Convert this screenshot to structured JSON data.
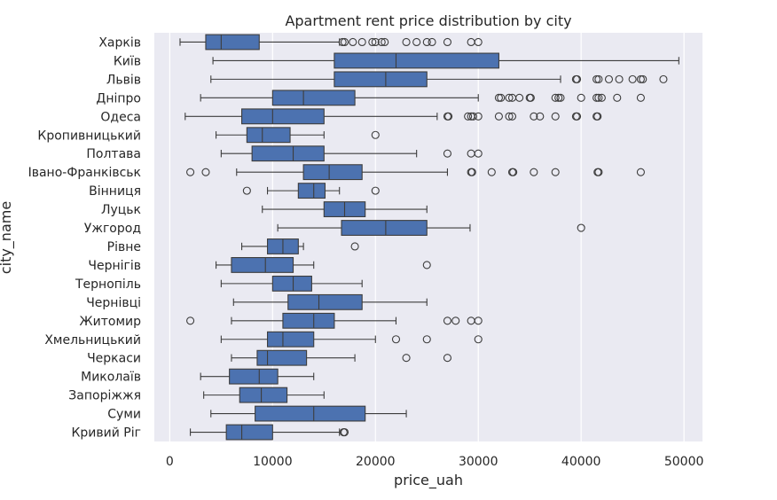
{
  "chart_data": {
    "type": "boxplot",
    "orientation": "horizontal",
    "title": "Apartment rent price distribution by city",
    "xlabel": "price_uah",
    "ylabel": "city_name",
    "xlim": [
      -1500,
      51800
    ],
    "x_ticks": [
      0,
      10000,
      20000,
      30000,
      40000,
      50000
    ],
    "grid": true,
    "background": "#eaeaf2",
    "box_color": "#4c72b0",
    "line_color": "#3d3d3d",
    "categories": [
      "Харків",
      "Київ",
      "Львів",
      "Дніпро",
      "Одеса",
      "Кропивницький",
      "Полтава",
      "Івано-Франківськ",
      "Вінниця",
      "Луцьк",
      "Ужгород",
      "Рівне",
      "Чернігів",
      "Тернопіль",
      "Чернівці",
      "Житомир",
      "Хмельницький",
      "Черкаси",
      "Миколаїв",
      "Запоріжжя",
      "Суми",
      "Кривий Ріг"
    ],
    "boxes": [
      {
        "whisker_low": 1000,
        "q1": 3500,
        "median": 5000,
        "q3": 8700,
        "whisker_high": 16500,
        "outliers": [
          16800,
          17000,
          17800,
          18700,
          19700,
          20000,
          20600,
          20900,
          23000,
          24000,
          25000,
          25500,
          27000,
          29300,
          30000
        ]
      },
      {
        "whisker_low": 4200,
        "q1": 16000,
        "median": 22000,
        "q3": 32000,
        "whisker_high": 49500,
        "outliers": []
      },
      {
        "whisker_low": 4000,
        "q1": 16000,
        "median": 21000,
        "q3": 25000,
        "whisker_high": 38000,
        "outliers": [
          39500,
          39600,
          41500,
          41700,
          42700,
          43700,
          45000,
          45800,
          46000,
          48000
        ]
      },
      {
        "whisker_low": 3000,
        "q1": 10000,
        "median": 13000,
        "q3": 18000,
        "whisker_high": 30000,
        "outliers": [
          32000,
          32200,
          33000,
          33300,
          34000,
          35000,
          35100,
          37500,
          37800,
          38000,
          40000,
          41500,
          41700,
          42000,
          43500,
          45800
        ]
      },
      {
        "whisker_low": 1500,
        "q1": 7000,
        "median": 10000,
        "q3": 15000,
        "whisker_high": 26000,
        "outliers": [
          27000,
          27100,
          29000,
          29300,
          29500,
          30000,
          32000,
          33000,
          33300,
          35400,
          36000,
          37500,
          39500,
          39600,
          41500,
          41600
        ]
      },
      {
        "whisker_low": 4500,
        "q1": 7500,
        "median": 9000,
        "q3": 11700,
        "whisker_high": 15000,
        "outliers": [
          20000
        ]
      },
      {
        "whisker_low": 5000,
        "q1": 8000,
        "median": 12000,
        "q3": 15000,
        "whisker_high": 24000,
        "outliers": [
          27000,
          29300,
          30000
        ]
      },
      {
        "whisker_low": 6500,
        "q1": 13000,
        "median": 15500,
        "q3": 18700,
        "whisker_high": 27000,
        "outliers": [
          2000,
          3500,
          29300,
          29400,
          31300,
          33300,
          33400,
          35400,
          37500,
          41600,
          41700,
          45800
        ]
      },
      {
        "whisker_low": 9500,
        "q1": 12500,
        "median": 14000,
        "q3": 15100,
        "whisker_high": 16500,
        "outliers": [
          7500,
          20000
        ]
      },
      {
        "whisker_low": 9000,
        "q1": 15000,
        "median": 17000,
        "q3": 19000,
        "whisker_high": 25000,
        "outliers": []
      },
      {
        "whisker_low": 10500,
        "q1": 16700,
        "median": 21000,
        "q3": 25000,
        "whisker_high": 29200,
        "outliers": [
          40000
        ]
      },
      {
        "whisker_low": 7000,
        "q1": 9500,
        "median": 11000,
        "q3": 12500,
        "whisker_high": 13000,
        "outliers": [
          18000
        ]
      },
      {
        "whisker_low": 4500,
        "q1": 6000,
        "median": 9300,
        "q3": 12000,
        "whisker_high": 14000,
        "outliers": [
          25000
        ]
      },
      {
        "whisker_low": 5000,
        "q1": 10000,
        "median": 12000,
        "q3": 13800,
        "whisker_high": 18700,
        "outliers": []
      },
      {
        "whisker_low": 6200,
        "q1": 11500,
        "median": 14500,
        "q3": 18700,
        "whisker_high": 25000,
        "outliers": []
      },
      {
        "whisker_low": 6000,
        "q1": 11000,
        "median": 14000,
        "q3": 16000,
        "whisker_high": 22000,
        "outliers": [
          2000,
          27000,
          27800,
          29300,
          30000
        ]
      },
      {
        "whisker_low": 5000,
        "q1": 9500,
        "median": 11000,
        "q3": 14000,
        "whisker_high": 20000,
        "outliers": [
          22000,
          25000,
          30000
        ]
      },
      {
        "whisker_low": 6000,
        "q1": 8500,
        "median": 9500,
        "q3": 13300,
        "whisker_high": 18000,
        "outliers": [
          23000,
          27000
        ]
      },
      {
        "whisker_low": 3000,
        "q1": 5800,
        "median": 8700,
        "q3": 10500,
        "whisker_high": 14000,
        "outliers": []
      },
      {
        "whisker_low": 3300,
        "q1": 6800,
        "median": 8900,
        "q3": 11400,
        "whisker_high": 15000,
        "outliers": []
      },
      {
        "whisker_low": 4000,
        "q1": 8300,
        "median": 14000,
        "q3": 19000,
        "whisker_high": 23000,
        "outliers": []
      },
      {
        "whisker_low": 2000,
        "q1": 5500,
        "median": 7000,
        "q3": 10000,
        "whisker_high": 16500,
        "outliers": [
          16900,
          17000
        ]
      }
    ]
  }
}
